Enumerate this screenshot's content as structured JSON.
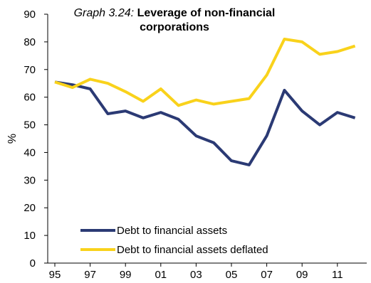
{
  "chart_data": {
    "type": "line",
    "title_prefix": "Graph 3.24:",
    "title": "Leverage of non-financial corporations",
    "ylabel": "%",
    "xlabel": "",
    "ylim": [
      0,
      90
    ],
    "yticks": [
      0,
      10,
      20,
      30,
      40,
      50,
      60,
      70,
      80,
      90
    ],
    "x": [
      1995,
      1996,
      1997,
      1998,
      1999,
      2000,
      2001,
      2002,
      2003,
      2004,
      2005,
      2006,
      2007,
      2008,
      2009,
      2010,
      2011,
      2012
    ],
    "xtick_values": [
      1995,
      1997,
      1999,
      2001,
      2003,
      2005,
      2007,
      2009,
      2011
    ],
    "xtick_labels": [
      "95",
      "97",
      "99",
      "01",
      "03",
      "05",
      "07",
      "09",
      "11"
    ],
    "grid": false,
    "legend_position": "bottom-left",
    "series": [
      {
        "name": "Debt to financial assets",
        "color": "#2b3a74",
        "values": [
          65.5,
          64.5,
          63.0,
          54.0,
          55.0,
          52.5,
          54.5,
          52.0,
          46.0,
          43.5,
          37.0,
          35.5,
          46.0,
          62.5,
          55.0,
          50.0,
          54.5,
          52.5
        ]
      },
      {
        "name": "Debt to financial assets deflated",
        "color": "#f9d21b",
        "values": [
          65.5,
          63.5,
          66.5,
          65.0,
          62.0,
          58.5,
          63.0,
          57.0,
          59.0,
          57.5,
          58.5,
          59.5,
          68.0,
          81.0,
          80.0,
          75.5,
          76.5,
          78.5
        ]
      }
    ]
  }
}
